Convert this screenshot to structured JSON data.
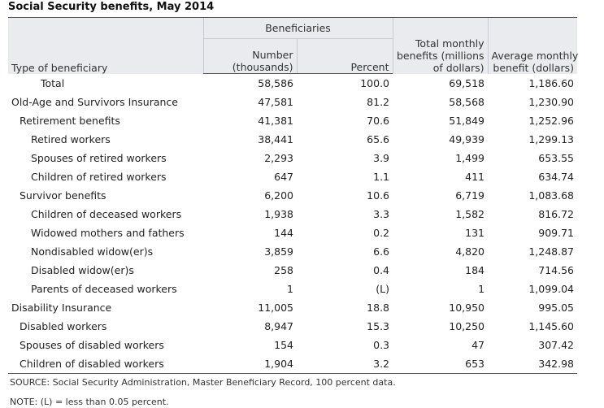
{
  "title": "Social Security benefits, May 2014",
  "header": {
    "type": "Type of beneficiary",
    "beneficiaries": "Beneficiaries",
    "number": "Number (thousands)",
    "number_l1": "Number",
    "number_l2": "(thousands)",
    "percent": "Percent",
    "total_monthly_l1": "Total monthly",
    "total_monthly_l2": "benefits (millions",
    "total_monthly_l3": "of dollars)",
    "avg_l1": "Average monthly",
    "avg_l2": "benefit (dollars)"
  },
  "rows": [
    {
      "label": "Total",
      "number": "58,586",
      "percent": "100.0",
      "total": "69,518",
      "avg": "1,186.60"
    },
    {
      "label": "Old-Age and Survivors Insurance",
      "number": "47,581",
      "percent": "81.2",
      "total": "58,568",
      "avg": "1,230.90"
    },
    {
      "label": "Retirement benefits",
      "number": "41,381",
      "percent": "70.6",
      "total": "51,849",
      "avg": "1,252.96"
    },
    {
      "label": "Retired workers",
      "number": "38,441",
      "percent": "65.6",
      "total": "49,939",
      "avg": "1,299.13"
    },
    {
      "label": "Spouses of retired workers",
      "number": "2,293",
      "percent": "3.9",
      "total": "1,499",
      "avg": "653.55"
    },
    {
      "label": "Children of retired workers",
      "number": "647",
      "percent": "1.1",
      "total": "411",
      "avg": "634.74"
    },
    {
      "label": "Survivor benefits",
      "number": "6,200",
      "percent": "10.6",
      "total": "6,719",
      "avg": "1,083.68"
    },
    {
      "label": "Children of deceased workers",
      "number": "1,938",
      "percent": "3.3",
      "total": "1,582",
      "avg": "816.72"
    },
    {
      "label": "Widowed mothers and fathers",
      "number": "144",
      "percent": "0.2",
      "total": "131",
      "avg": "909.71"
    },
    {
      "label": "Nondisabled widow(er)s",
      "number": "3,859",
      "percent": "6.6",
      "total": "4,820",
      "avg": "1,248.87"
    },
    {
      "label": "Disabled widow(er)s",
      "number": "258",
      "percent": "0.4",
      "total": "184",
      "avg": "714.56"
    },
    {
      "label": "Parents of deceased workers",
      "number": "1",
      "percent": "(L)",
      "total": "1",
      "avg": "1,099.04"
    },
    {
      "label": "Disability Insurance",
      "number": "11,005",
      "percent": "18.8",
      "total": "10,950",
      "avg": "995.05"
    },
    {
      "label": "Disabled workers",
      "number": "8,947",
      "percent": "15.3",
      "total": "10,250",
      "avg": "1,145.60"
    },
    {
      "label": "Spouses of disabled workers",
      "number": "154",
      "percent": "0.3",
      "total": "47",
      "avg": "307.42"
    },
    {
      "label": "Children of disabled workers",
      "number": "1,904",
      "percent": "3.2",
      "total": "653",
      "avg": "342.98"
    }
  ],
  "source": "SOURCE: Social Security Administration, Master Beneficiary Record, 100 percent data.",
  "note": "NOTE: (L) = less than 0.05 percent."
}
